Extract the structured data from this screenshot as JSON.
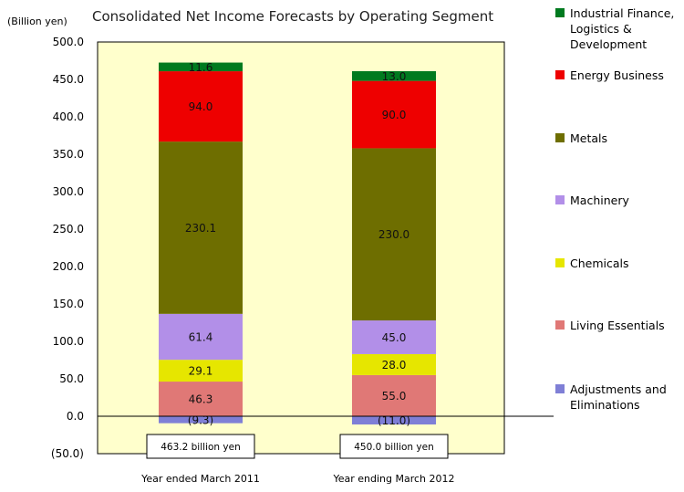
{
  "chart_data": {
    "type": "bar",
    "stacked": true,
    "title": "Consolidated Net Income Forecasts by Operating Segment",
    "ylabel": "(Billion yen)",
    "ylim": [
      -50,
      500
    ],
    "yticks": [
      "(50.0)",
      "0.0",
      "50.0",
      "100.0",
      "150.0",
      "200.0",
      "250.0",
      "300.0",
      "350.0",
      "400.0",
      "450.0",
      "500.0"
    ],
    "categories": [
      "Year ended March 2011",
      "Year ending March 2012"
    ],
    "totals": [
      "463.2 billion yen",
      "450.0 billion yen"
    ],
    "series": [
      {
        "name": "Adjustments and Eliminations",
        "color": "#7f7fd6",
        "values": [
          -9.3,
          -11.0
        ],
        "labels": [
          "(9.3)",
          "(11.0)"
        ]
      },
      {
        "name": "Living Essentials",
        "color": "#e07876",
        "values": [
          46.3,
          55.0
        ],
        "labels": [
          "46.3",
          "55.0"
        ]
      },
      {
        "name": "Chemicals",
        "color": "#e6e600",
        "values": [
          29.1,
          28.0
        ],
        "labels": [
          "29.1",
          "28.0"
        ]
      },
      {
        "name": "Machinery",
        "color": "#b28fe8",
        "values": [
          61.4,
          45.0
        ],
        "labels": [
          "61.4",
          "45.0"
        ]
      },
      {
        "name": "Metals",
        "color": "#6e6e00",
        "values": [
          230.1,
          230.0
        ],
        "labels": [
          "230.1",
          "230.0"
        ]
      },
      {
        "name": "Energy Business",
        "color": "#ee0000",
        "values": [
          94.0,
          90.0
        ],
        "labels": [
          "94.0",
          "90.0"
        ]
      },
      {
        "name": "Industrial Finance, Logistics & Development",
        "color": "#007a1f",
        "values": [
          11.6,
          13.0
        ],
        "labels": [
          "11.6",
          "13.0"
        ]
      }
    ],
    "legend": {
      "placement": "right",
      "entries": [
        {
          "series": "Industrial Finance, Logistics & Development",
          "lines": [
            "Industrial Finance,",
            "Logistics &",
            "Development"
          ]
        },
        {
          "series": "Energy Business",
          "lines": [
            "Energy Business"
          ]
        },
        {
          "series": "Metals",
          "lines": [
            "Metals"
          ]
        },
        {
          "series": "Machinery",
          "lines": [
            "Machinery"
          ]
        },
        {
          "series": "Chemicals",
          "lines": [
            "Chemicals"
          ]
        },
        {
          "series": "Living Essentials",
          "lines": [
            "Living Essentials"
          ]
        },
        {
          "series": "Adjustments and Eliminations",
          "lines": [
            "Adjustments and",
            "Eliminations"
          ]
        }
      ]
    },
    "plot_background": "#ffffcc",
    "grid": false
  }
}
